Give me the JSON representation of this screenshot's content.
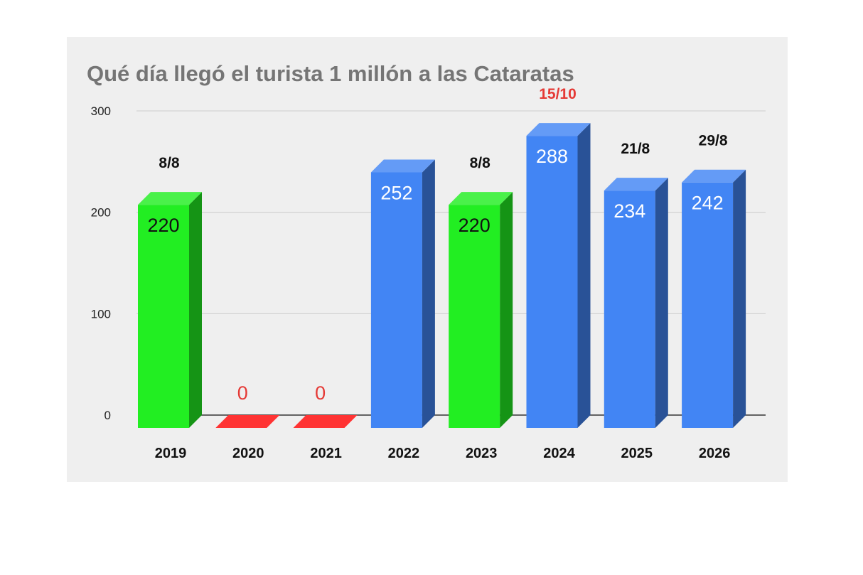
{
  "chart_data": {
    "type": "bar",
    "title": "Qué día llegó el turista 1 millón a las Cataratas",
    "xlabel": "",
    "ylabel": "",
    "ylim": [
      0,
      300
    ],
    "yticks": [
      "0",
      "100",
      "200",
      "300"
    ],
    "grid": true,
    "legend": "none",
    "categories": [
      "2019",
      "2020",
      "2021",
      "2022",
      "2023",
      "2024",
      "2025",
      "2026"
    ],
    "values": [
      220,
      0,
      0,
      252,
      220,
      288,
      234,
      242
    ],
    "value_labels": [
      "220",
      "0",
      "0",
      "252",
      "220",
      "288",
      "234",
      "242"
    ],
    "date_labels": [
      "8/8",
      "",
      "",
      "",
      "8/8",
      "15/10",
      "21/8",
      "29/8"
    ],
    "bar_colors": [
      "#22ee22",
      "#ff3333",
      "#ff3333",
      "#4285f4",
      "#22ee22",
      "#4285f4",
      "#4285f4",
      "#4285f4"
    ],
    "value_label_colors": [
      "#111111",
      "#e53935",
      "#e53935",
      "#ffffff",
      "#111111",
      "#ffffff",
      "#ffffff",
      "#ffffff"
    ],
    "date_label_colors": [
      "#111111",
      "#111111",
      "#111111",
      "#111111",
      "#111111",
      "#e53935",
      "#111111",
      "#111111"
    ]
  }
}
